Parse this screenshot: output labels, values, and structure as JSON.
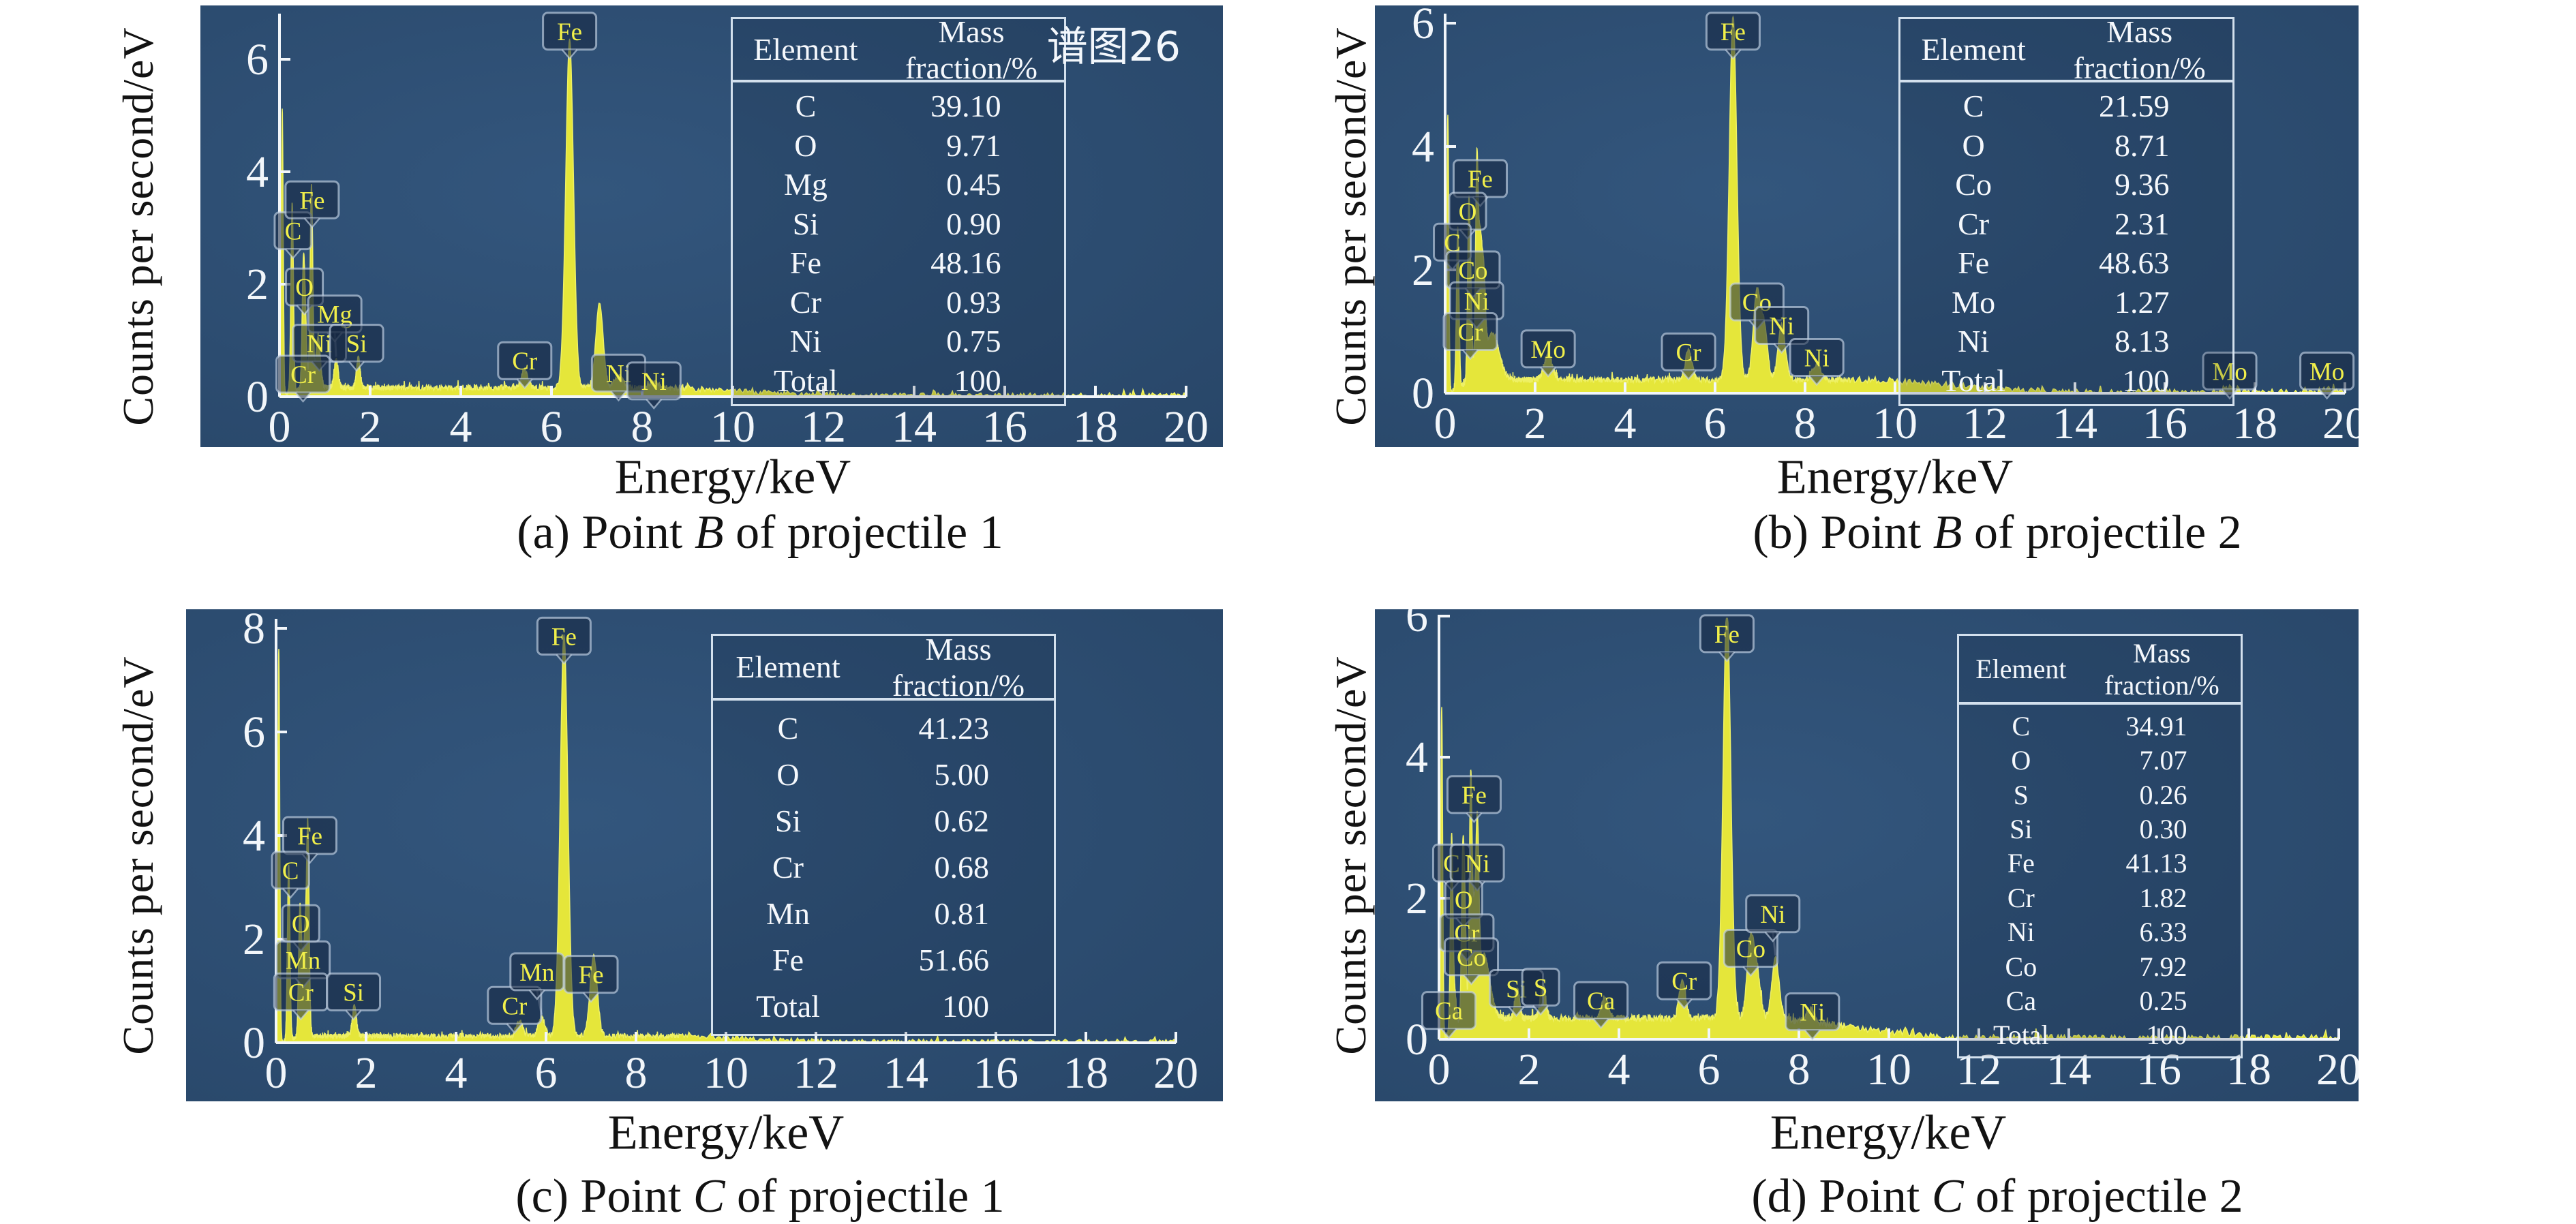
{
  "figure": {
    "ylabel": "Counts per second/eV",
    "xlabel": "Energy/keV",
    "spectrum_tag": "谱图26"
  },
  "colors": {
    "panel_bg_light": "#33567d",
    "panel_bg_dark": "#284668",
    "spectrum_yellow": "#e5e63a",
    "spectrum_edge": "#eef065",
    "axis_white": "#f2f6fa",
    "label_text_yellow": "#f1ef4a",
    "label_box_fill": "rgba(22,39,64,0.55)",
    "label_box_border": "rgba(197,212,231,0.65)",
    "table_text": "#f5f8fc",
    "caption_black": "#121212"
  },
  "chart_data": [
    {
      "id": "a",
      "type": "area",
      "title_tag": "谱图26",
      "xlabel": "Energy/keV",
      "ylabel": "Counts per second/eV",
      "xlim": [
        0,
        20
      ],
      "xticks": [
        0,
        2,
        4,
        6,
        8,
        10,
        12,
        14,
        16,
        18,
        20
      ],
      "yticks": [
        0,
        2,
        4,
        6
      ],
      "grid": false,
      "caption": {
        "pre": "(a) Point ",
        "it": "B",
        "post": " of projectile 1"
      },
      "table": {
        "headers": [
          "Element",
          "Mass fraction/%"
        ],
        "rows": [
          [
            "C",
            "39.10"
          ],
          [
            "O",
            "9.71"
          ],
          [
            "Mg",
            "0.45"
          ],
          [
            "Si",
            "0.90"
          ],
          [
            "Fe",
            "48.16"
          ],
          [
            "Cr",
            "0.93"
          ],
          [
            "Ni",
            "0.75"
          ],
          [
            "Total",
            "100"
          ]
        ]
      },
      "peaks": [
        {
          "el": "noise",
          "kev": 0.06,
          "h": 5.1,
          "s": 0.022
        },
        {
          "el": "C",
          "kev": 0.28,
          "h": 3.4,
          "s": 0.028
        },
        {
          "el": "O",
          "kev": 0.525,
          "h": 2.0,
          "s": 0.028
        },
        {
          "el": "Cr",
          "kev": 0.573,
          "h": 1.15,
          "s": 0.03
        },
        {
          "el": "Fe",
          "kev": 0.705,
          "h": 3.6,
          "s": 0.03
        },
        {
          "el": "Ni",
          "kev": 0.852,
          "h": 0.9,
          "s": 0.05
        },
        {
          "el": "Mg",
          "kev": 1.25,
          "h": 0.5,
          "s": 0.045
        },
        {
          "el": "Si",
          "kev": 1.74,
          "h": 0.55,
          "s": 0.04
        },
        {
          "el": "Cr",
          "kev": 5.41,
          "h": 0.33,
          "s": 0.07
        },
        {
          "el": "Fe",
          "kev": 6.4,
          "h": 6.2,
          "s": 0.085
        },
        {
          "el": "Fe",
          "kev": 7.06,
          "h": 1.5,
          "s": 0.08
        },
        {
          "el": "Ni",
          "kev": 7.48,
          "h": 0.2,
          "s": 0.09
        },
        {
          "el": "Ni",
          "kev": 8.26,
          "h": 0.12,
          "s": 0.09
        }
      ],
      "labels": [
        {
          "el": "Fe",
          "kev": 6.4,
          "v": 6.5
        },
        {
          "el": "C",
          "kev": 0.28,
          "v": 2.95,
          "bx": 0.3
        },
        {
          "el": "Fe",
          "kev": 0.705,
          "v": 3.5,
          "bx": 0.72
        },
        {
          "el": "O",
          "kev": 0.525,
          "v": 1.95,
          "bx": 0.55
        },
        {
          "el": "Mg",
          "kev": 1.25,
          "v": 1.47,
          "bx": 1.22
        },
        {
          "el": "Ni",
          "kev": 0.852,
          "v": 0.95,
          "bx": 0.88
        },
        {
          "el": "Si",
          "kev": 1.74,
          "v": 0.95,
          "bx": 1.7
        },
        {
          "el": "Cr",
          "kev": 0.573,
          "v": 0.4,
          "bx": 0.52
        },
        {
          "el": "Cr",
          "kev": 5.41,
          "v": 0.64
        },
        {
          "el": "Ni",
          "kev": 7.48,
          "v": 0.42
        },
        {
          "el": "Ni",
          "kev": 8.26,
          "v": 0.28
        }
      ]
    },
    {
      "id": "b",
      "type": "area",
      "xlabel": "Energy/keV",
      "ylabel": "Counts per second/eV",
      "xlim": [
        0,
        20
      ],
      "xticks": [
        0,
        2,
        4,
        6,
        8,
        10,
        12,
        14,
        16,
        18,
        20
      ],
      "yticks": [
        0,
        2,
        4,
        6
      ],
      "grid": false,
      "caption": {
        "pre": "(b) Point ",
        "it": "B",
        "post": " of projectile 2"
      },
      "table": {
        "headers": [
          "Element",
          "Mass fraction/%"
        ],
        "rows": [
          [
            "C",
            "21.59"
          ],
          [
            "O",
            "8.71"
          ],
          [
            "Co",
            "9.36"
          ],
          [
            "Cr",
            "2.31"
          ],
          [
            "Fe",
            "48.63"
          ],
          [
            "Mo",
            "1.27"
          ],
          [
            "Ni",
            "8.13"
          ],
          [
            "Total",
            "100"
          ]
        ]
      },
      "peaks": [
        {
          "el": "noise",
          "kev": 0.06,
          "h": 4.5,
          "s": 0.022
        },
        {
          "el": "C",
          "kev": 0.28,
          "h": 2.6,
          "s": 0.028
        },
        {
          "el": "O",
          "kev": 0.525,
          "h": 2.6,
          "s": 0.028
        },
        {
          "el": "Cr",
          "kev": 0.573,
          "h": 1.15,
          "s": 0.03
        },
        {
          "el": "Fe",
          "kev": 0.705,
          "h": 3.4,
          "s": 0.03
        },
        {
          "el": "Co",
          "kev": 0.776,
          "h": 1.9,
          "s": 0.035
        },
        {
          "el": "Ni",
          "kev": 0.852,
          "h": 1.5,
          "s": 0.04
        },
        {
          "el": "bump",
          "kev": 1.05,
          "h": 0.75,
          "s": 0.15
        },
        {
          "el": "Mo",
          "kev": 2.29,
          "h": 0.4,
          "s": 0.09
        },
        {
          "el": "Cr",
          "kev": 5.41,
          "h": 0.5,
          "s": 0.07
        },
        {
          "el": "Fe",
          "kev": 6.4,
          "h": 5.9,
          "s": 0.085
        },
        {
          "el": "Co",
          "kev": 6.93,
          "h": 1.45,
          "s": 0.08
        },
        {
          "el": "Fe",
          "kev": 7.1,
          "h": 0.8,
          "s": 0.07
        },
        {
          "el": "Ni",
          "kev": 7.48,
          "h": 0.9,
          "s": 0.08
        },
        {
          "el": "Ni",
          "kev": 8.26,
          "h": 0.26,
          "s": 0.09
        },
        {
          "el": "Mo",
          "kev": 17.44,
          "h": 0.07,
          "s": 0.12
        },
        {
          "el": "Mo",
          "kev": 19.6,
          "h": 0.06,
          "s": 0.12
        }
      ],
      "labels": [
        {
          "el": "Fe",
          "kev": 6.4,
          "v": 5.87
        },
        {
          "el": "Fe",
          "kev": 0.705,
          "v": 3.48,
          "bx": 0.78
        },
        {
          "el": "O",
          "kev": 0.525,
          "v": 2.95,
          "bx": 0.5
        },
        {
          "el": "C",
          "kev": 0.28,
          "v": 2.45,
          "bx": 0.16
        },
        {
          "el": "Co",
          "kev": 0.776,
          "v": 2.0,
          "bx": 0.62
        },
        {
          "el": "Ni",
          "kev": 0.852,
          "v": 1.5,
          "bx": 0.7
        },
        {
          "el": "Cr",
          "kev": 0.573,
          "v": 1.0,
          "bx": 0.56
        },
        {
          "el": "Mo",
          "kev": 2.29,
          "v": 0.72
        },
        {
          "el": "Cr",
          "kev": 5.41,
          "v": 0.67
        },
        {
          "el": "Co",
          "kev": 6.93,
          "v": 1.48
        },
        {
          "el": "Ni",
          "kev": 7.48,
          "v": 1.1
        },
        {
          "el": "Ni",
          "kev": 8.26,
          "v": 0.58
        },
        {
          "el": "Mo",
          "kev": 17.44,
          "v": 0.36
        },
        {
          "el": "Mo",
          "kev": 19.6,
          "v": 0.36
        }
      ]
    },
    {
      "id": "c",
      "type": "area",
      "xlabel": "Energy/keV",
      "ylabel": "Counts per second/eV",
      "xlim": [
        0,
        20
      ],
      "xticks": [
        0,
        2,
        4,
        6,
        8,
        10,
        12,
        14,
        16,
        18,
        20
      ],
      "yticks": [
        0,
        2,
        4,
        6,
        8
      ],
      "grid": false,
      "caption": {
        "pre": "(c) Point ",
        "it": "C",
        "post": " of projectile 1"
      },
      "table": {
        "headers": [
          "Element",
          "Mass fraction/%"
        ],
        "rows": [
          [
            "C",
            "41.23"
          ],
          [
            "O",
            "5.00"
          ],
          [
            "Si",
            "0.62"
          ],
          [
            "Cr",
            "0.68"
          ],
          [
            "Mn",
            "0.81"
          ],
          [
            "Fe",
            "51.66"
          ],
          [
            "Total",
            "100"
          ]
        ]
      },
      "peaks": [
        {
          "el": "noise",
          "kev": 0.06,
          "h": 7.6,
          "s": 0.022
        },
        {
          "el": "C",
          "kev": 0.28,
          "h": 3.4,
          "s": 0.028
        },
        {
          "el": "O",
          "kev": 0.525,
          "h": 2.15,
          "s": 0.028
        },
        {
          "el": "Cr",
          "kev": 0.573,
          "h": 1.2,
          "s": 0.03
        },
        {
          "el": "Mn",
          "kev": 0.637,
          "h": 1.65,
          "s": 0.03
        },
        {
          "el": "Fe",
          "kev": 0.705,
          "h": 4.05,
          "s": 0.03
        },
        {
          "el": "Si",
          "kev": 1.74,
          "h": 0.6,
          "s": 0.045
        },
        {
          "el": "Cr",
          "kev": 5.41,
          "h": 0.3,
          "s": 0.07
        },
        {
          "el": "Mn",
          "kev": 5.9,
          "h": 0.36,
          "s": 0.07
        },
        {
          "el": "Fe",
          "kev": 6.4,
          "h": 7.75,
          "s": 0.085
        },
        {
          "el": "Fe",
          "kev": 7.06,
          "h": 1.55,
          "s": 0.08
        }
      ],
      "labels": [
        {
          "el": "Fe",
          "kev": 6.4,
          "v": 7.85
        },
        {
          "el": "Fe",
          "kev": 0.705,
          "v": 4.0,
          "bx": 0.75
        },
        {
          "el": "C",
          "kev": 0.28,
          "v": 3.33,
          "bx": 0.32
        },
        {
          "el": "O",
          "kev": 0.525,
          "v": 2.3,
          "bx": 0.55
        },
        {
          "el": "Mn",
          "kev": 0.637,
          "v": 1.6,
          "bx": 0.6
        },
        {
          "el": "Cr",
          "kev": 0.573,
          "v": 0.98,
          "bx": 0.55
        },
        {
          "el": "Si",
          "kev": 1.74,
          "v": 0.98,
          "bx": 1.72
        },
        {
          "el": "Cr",
          "kev": 5.41,
          "v": 0.72,
          "bx": 5.3
        },
        {
          "el": "Mn",
          "kev": 5.9,
          "v": 1.37,
          "bx": 5.8
        },
        {
          "el": "Fe",
          "kev": 7.06,
          "v": 1.32,
          "bx": 7.0
        }
      ]
    },
    {
      "id": "d",
      "type": "area",
      "xlabel": "Energy/keV",
      "ylabel": "Counts per second/eV",
      "xlim": [
        0,
        20
      ],
      "xticks": [
        0,
        2,
        4,
        6,
        8,
        10,
        12,
        14,
        16,
        18,
        20
      ],
      "yticks": [
        0,
        2,
        4,
        6
      ],
      "grid": false,
      "caption": {
        "pre": "(d) Point ",
        "it": "C",
        "post": " of projectile 2"
      },
      "table": {
        "headers": [
          "Element",
          "Mass fraction/%"
        ],
        "rows": [
          [
            "C",
            "34.91"
          ],
          [
            "O",
            "7.07"
          ],
          [
            "S",
            "0.26"
          ],
          [
            "Si",
            "0.30"
          ],
          [
            "Fe",
            "41.13"
          ],
          [
            "Cr",
            "1.82"
          ],
          [
            "Ni",
            "6.33"
          ],
          [
            "Co",
            "7.92"
          ],
          [
            "Ca",
            "0.25"
          ],
          [
            "Total",
            "100"
          ]
        ]
      },
      "peaks": [
        {
          "el": "noise",
          "kev": 0.06,
          "h": 4.7,
          "s": 0.022
        },
        {
          "el": "C",
          "kev": 0.28,
          "h": 2.65,
          "s": 0.028
        },
        {
          "el": "Ca",
          "kev": 0.345,
          "h": 0.5,
          "s": 0.04
        },
        {
          "el": "O",
          "kev": 0.525,
          "h": 2.0,
          "s": 0.028
        },
        {
          "el": "Cr",
          "kev": 0.573,
          "h": 1.55,
          "s": 0.03
        },
        {
          "el": "Fe",
          "kev": 0.705,
          "h": 3.3,
          "s": 0.03
        },
        {
          "el": "Co",
          "kev": 0.776,
          "h": 1.1,
          "s": 0.035
        },
        {
          "el": "Ni",
          "kev": 0.852,
          "h": 2.35,
          "s": 0.035
        },
        {
          "el": "bump",
          "kev": 1.0,
          "h": 0.9,
          "s": 0.13
        },
        {
          "el": "Si",
          "kev": 1.74,
          "h": 0.42,
          "s": 0.05
        },
        {
          "el": "S",
          "kev": 2.31,
          "h": 0.48,
          "s": 0.06
        },
        {
          "el": "Ca",
          "kev": 3.69,
          "h": 0.3,
          "s": 0.07
        },
        {
          "el": "Cr",
          "kev": 5.41,
          "h": 0.55,
          "s": 0.07
        },
        {
          "el": "Fe",
          "kev": 6.4,
          "h": 5.85,
          "s": 0.085
        },
        {
          "el": "Co",
          "kev": 6.93,
          "h": 1.15,
          "s": 0.08
        },
        {
          "el": "Fe",
          "kev": 7.08,
          "h": 0.55,
          "s": 0.07
        },
        {
          "el": "Ni",
          "kev": 7.48,
          "h": 0.85,
          "s": 0.08
        },
        {
          "el": "Ni",
          "kev": 8.26,
          "h": 0.18,
          "s": 0.09
        }
      ],
      "labels": [
        {
          "el": "Fe",
          "kev": 6.4,
          "v": 5.75
        },
        {
          "el": "Fe",
          "kev": 0.705,
          "v": 3.47,
          "bx": 0.78
        },
        {
          "el": "C",
          "kev": 0.28,
          "v": 2.5,
          "bx": 0.28
        },
        {
          "el": "Ni",
          "kev": 0.852,
          "v": 2.5,
          "bx": 0.85
        },
        {
          "el": "O",
          "kev": 0.525,
          "v": 1.98,
          "bx": 0.55
        },
        {
          "el": "Cr",
          "kev": 0.573,
          "v": 1.51,
          "bx": 0.62
        },
        {
          "el": "Co",
          "kev": 0.776,
          "v": 1.17,
          "bx": 0.72
        },
        {
          "el": "Ca",
          "kev": 0.345,
          "v": 0.41,
          "bx": 0.22
        },
        {
          "el": "Si",
          "kev": 1.74,
          "v": 0.72,
          "bx": 1.72
        },
        {
          "el": "S",
          "kev": 2.31,
          "v": 0.74,
          "bx": 2.26
        },
        {
          "el": "Ca",
          "kev": 3.69,
          "v": 0.55,
          "bx": 3.6
        },
        {
          "el": "Cr",
          "kev": 5.41,
          "v": 0.83,
          "bx": 5.45
        },
        {
          "el": "Co",
          "kev": 6.93,
          "v": 1.29
        },
        {
          "el": "Ni",
          "kev": 7.48,
          "v": 1.78,
          "bx": 7.42
        },
        {
          "el": "Ni",
          "kev": 8.26,
          "v": 0.39,
          "bx": 8.3
        }
      ]
    }
  ]
}
